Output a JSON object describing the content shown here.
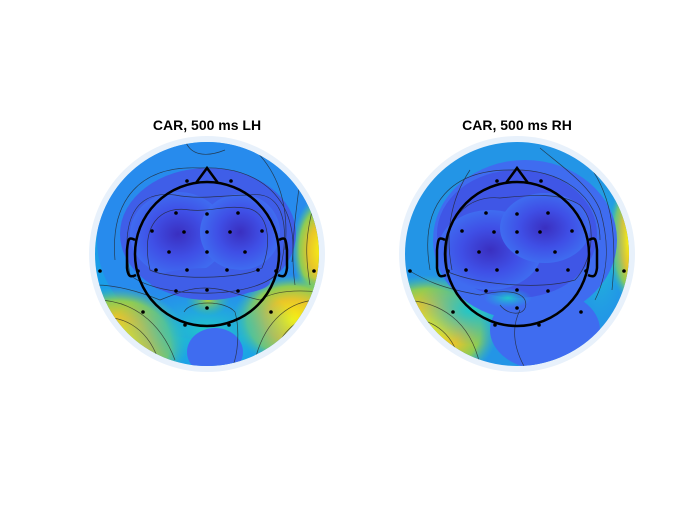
{
  "chart_data": [
    {
      "type": "heatmap",
      "title": "CAR, 500 ms LH",
      "colormap": "parula",
      "colors": {
        "low": "#3e26a8",
        "mid": "#13bee1",
        "high": "#f9fb0e",
        "rim": "#e8f1fb"
      },
      "grid": false,
      "electrodes_shown": true,
      "contour_lines": true
    },
    {
      "type": "heatmap",
      "title": "CAR, 500 ms RH",
      "colormap": "parula",
      "colors": {
        "low": "#3e26a8",
        "mid": "#13bee1",
        "high": "#f9fb0e",
        "rim": "#e8f1fb"
      },
      "grid": false,
      "electrodes_shown": true,
      "contour_lines": true
    }
  ]
}
